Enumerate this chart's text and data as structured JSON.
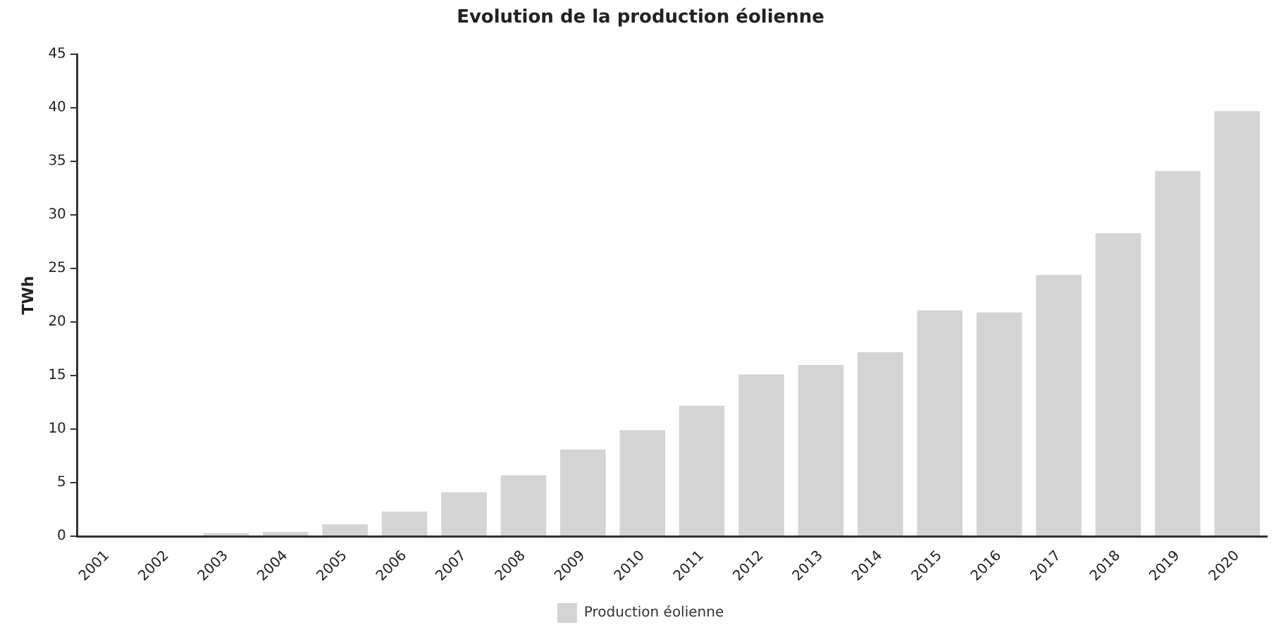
{
  "chart_data": {
    "type": "bar",
    "title": "Evolution de la production éolienne",
    "ylabel": "TWh",
    "categories": [
      "2001",
      "2002",
      "2003",
      "2004",
      "2005",
      "2006",
      "2007",
      "2008",
      "2009",
      "2010",
      "2011",
      "2012",
      "2013",
      "2014",
      "2015",
      "2016",
      "2017",
      "2018",
      "2019",
      "2020"
    ],
    "series": [
      {
        "name": "Production éolienne",
        "color": "#d4d4d4",
        "values": [
          null,
          null,
          0.3,
          0.4,
          1.1,
          2.3,
          4.1,
          5.7,
          8.1,
          9.9,
          12.2,
          15.1,
          16,
          17.2,
          21.1,
          20.9,
          24.4,
          28.3,
          34.1,
          39.7
        ]
      }
    ],
    "ylim": [
      0,
      45
    ],
    "yticks": [
      0,
      5,
      10,
      15,
      20,
      25,
      30,
      35,
      40,
      45
    ],
    "grid": false,
    "legend": "bottom"
  }
}
